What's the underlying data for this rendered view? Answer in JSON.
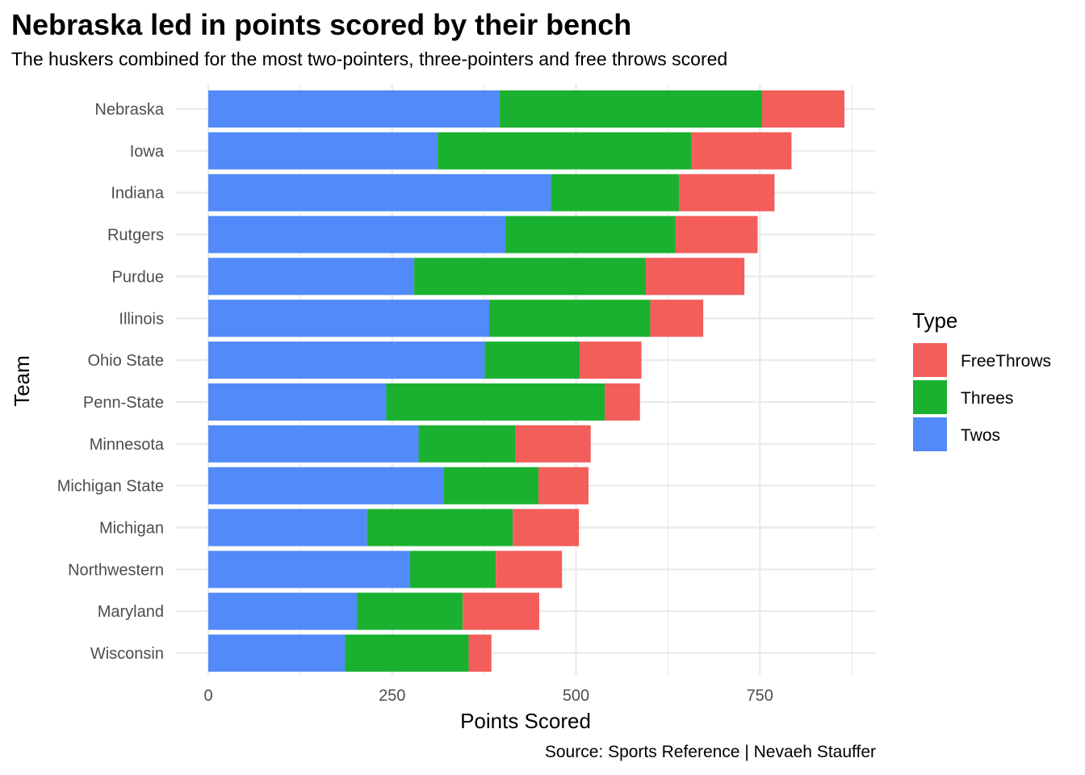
{
  "title": "Nebraska led in points scored by their bench",
  "subtitle": "The huskers combined for the most two-pointers, three-pointers and free throws scored",
  "caption": "Source: Sports Reference | Nevaeh Stauffer",
  "colors": {
    "Twos": "#528af9",
    "Threes": "#1bb130",
    "FreeThrows": "#f35e5b",
    "grid": "#ebebeb"
  },
  "chart_data": {
    "type": "bar",
    "orientation": "horizontal",
    "stacked": true,
    "xlabel": "Points Scored",
    "ylabel": "Team",
    "xlim": [
      0,
      900
    ],
    "x_ticks": [
      0,
      250,
      500,
      750
    ],
    "x_tick_labels": [
      "0",
      "250",
      "500",
      "750"
    ],
    "grid": true,
    "legend_title": "Type",
    "legend_position": "right",
    "legend": [
      "FreeThrows",
      "Threes",
      "Twos"
    ],
    "categories": [
      "Nebraska",
      "Iowa",
      "Indiana",
      "Rutgers",
      "Purdue",
      "Illinois",
      "Ohio State",
      "Penn-State",
      "Minnesota",
      "Michigan State",
      "Michigan",
      "Northwestern",
      "Maryland",
      "Wisconsin"
    ],
    "series": [
      {
        "name": "Twos",
        "values": [
          396,
          312,
          466,
          404,
          280,
          382,
          376,
          242,
          286,
          320,
          216,
          274,
          202,
          186
        ]
      },
      {
        "name": "Threes",
        "values": [
          357,
          345,
          174,
          231,
          315,
          219,
          129,
          297,
          132,
          129,
          198,
          117,
          144,
          168
        ]
      },
      {
        "name": "FreeThrows",
        "values": [
          112,
          136,
          130,
          112,
          134,
          72,
          84,
          48,
          102,
          68,
          90,
          90,
          104,
          31
        ]
      }
    ]
  }
}
